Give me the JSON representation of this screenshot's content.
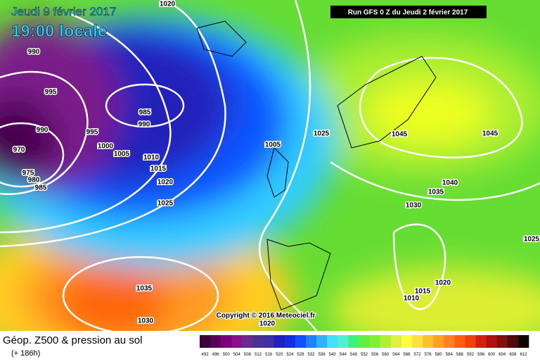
{
  "header": {
    "date": "Jeudi 9 février 2017",
    "time": "19:00 locale",
    "run": "Run GFS 0 Z du Jeudi 2 février 2017"
  },
  "copyright": "Copyright © 2016 Meteociel.fr",
  "isobars": [
    1020,
    990,
    995,
    985,
    990,
    990,
    995,
    1000,
    1005,
    970,
    1010,
    975,
    980,
    1015,
    985,
    1020,
    1025,
    1005,
    1025,
    1045,
    1045,
    1040,
    1035,
    1030,
    1025,
    1020,
    1015,
    1010,
    1035,
    1030,
    1020
  ],
  "legend": {
    "title": "Géop. Z500 & pression au sol",
    "lead": "(+ 186h)"
  },
  "colorbar": {
    "values": [
      492,
      496,
      500,
      504,
      508,
      512,
      516,
      520,
      524,
      528,
      532,
      536,
      540,
      544,
      548,
      552,
      556,
      560,
      564,
      568,
      572,
      576,
      580,
      584,
      588,
      592,
      596,
      600,
      604,
      608,
      612
    ],
    "colors": [
      "#3a003a",
      "#5a005a",
      "#7a007a",
      "#8a108a",
      "#6a2a8a",
      "#4a3090",
      "#3a30a0",
      "#2020c0",
      "#1030e0",
      "#1050ff",
      "#2080ff",
      "#30b0ff",
      "#40e0ff",
      "#50f0d0",
      "#40f080",
      "#60f040",
      "#80f030",
      "#b0f030",
      "#e0f040",
      "#ffff40",
      "#ffe040",
      "#ffc030",
      "#ffa020",
      "#ff8020",
      "#ff6010",
      "#f04010",
      "#d02010",
      "#b01010",
      "#801010",
      "#500808",
      "#100000"
    ]
  }
}
